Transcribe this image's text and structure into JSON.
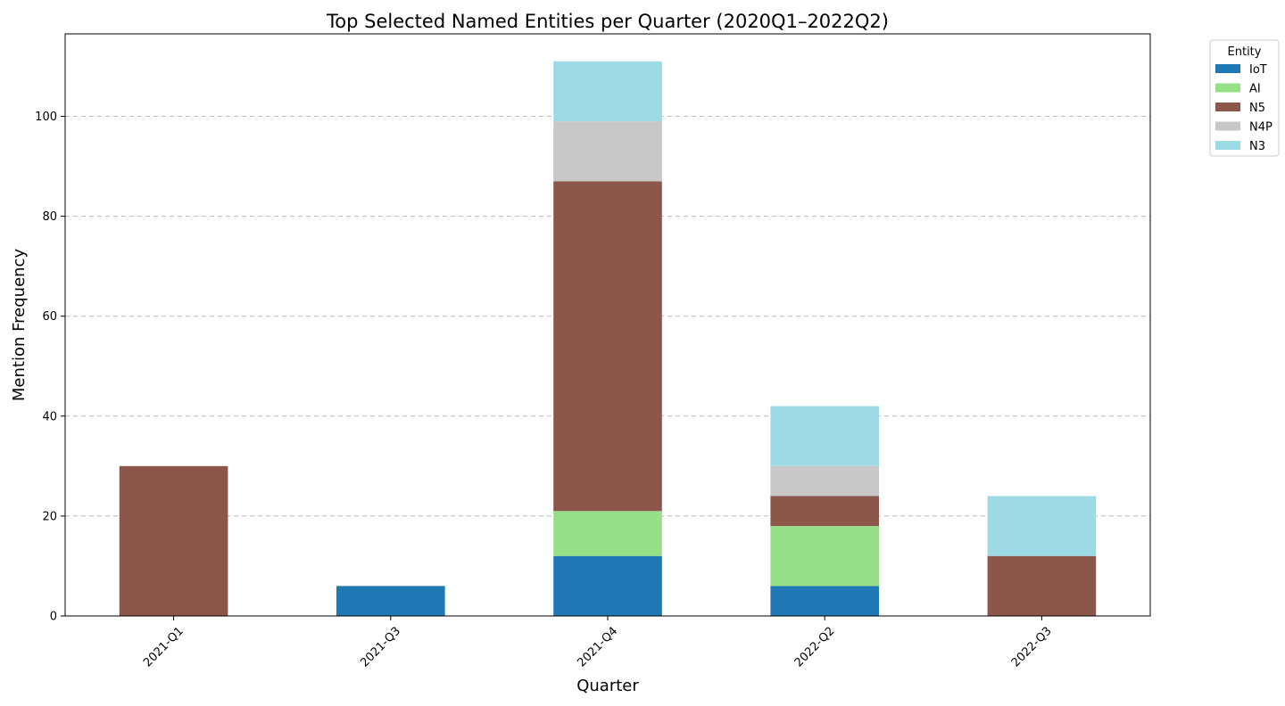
{
  "chart_data": {
    "type": "bar",
    "stacked": true,
    "title": "Top Selected Named Entities per Quarter (2020Q1–2022Q2)",
    "xlabel": "Quarter",
    "ylabel": "Mention Frequency",
    "categories": [
      "2021-Q1",
      "2021-Q3",
      "2021-Q4",
      "2022-Q2",
      "2022-Q3"
    ],
    "series": [
      {
        "name": "IoT",
        "color": "#1f77b4",
        "values": [
          0,
          6,
          12,
          6,
          0
        ]
      },
      {
        "name": "AI",
        "color": "#98df8a",
        "values": [
          0,
          0,
          9,
          12,
          0
        ]
      },
      {
        "name": "N5",
        "color": "#8c564b",
        "values": [
          30,
          0,
          66,
          6,
          12
        ]
      },
      {
        "name": "N4P",
        "color": "#c7c7c7",
        "values": [
          0,
          0,
          12,
          6,
          0
        ]
      },
      {
        "name": "N3",
        "color": "#9edae5",
        "values": [
          0,
          0,
          12,
          12,
          12
        ]
      }
    ],
    "ylim": [
      0,
      116.5
    ],
    "yticks": [
      0,
      20,
      40,
      60,
      80,
      100
    ],
    "grid": "y dashed",
    "legend": {
      "title": "Entity",
      "placement": "outside-top-right"
    }
  }
}
